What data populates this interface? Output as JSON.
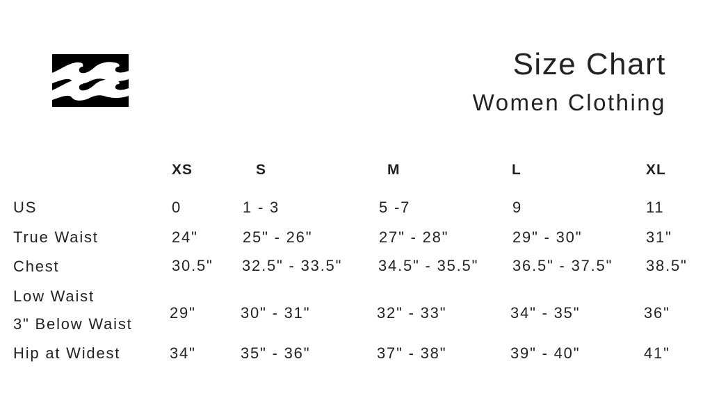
{
  "header": {
    "title": "Size Chart",
    "subtitle": "Women Clothing",
    "logo": "billabong-wave-logo"
  },
  "table": {
    "columns": [
      "XS",
      "S",
      "M",
      "L",
      "XL"
    ],
    "rows": [
      {
        "label": "US",
        "values": [
          "0",
          "1 - 3",
          "5 -7",
          "9",
          "11"
        ]
      },
      {
        "label": "True Waist",
        "values": [
          "24\"",
          "25\" - 26\"",
          "27\" - 28\"",
          "29\" - 30\"",
          "31\""
        ]
      },
      {
        "label": "Chest",
        "values": [
          "30.5\"",
          "32.5\" - 33.5\"",
          "34.5\" - 35.5\"",
          "36.5\" - 37.5\"",
          "38.5\""
        ]
      },
      {
        "label": "Low Waist",
        "label2": "3\" Below Waist",
        "values": [
          "29\"",
          "30\" - 31\"",
          "32\" - 33\"",
          "34\" - 35\"",
          "36\""
        ]
      },
      {
        "label": "Hip at Widest",
        "values": [
          "34\"",
          "35\" - 36\"",
          "37\" - 38\"",
          "39\" - 40\"",
          "41\""
        ]
      }
    ]
  }
}
